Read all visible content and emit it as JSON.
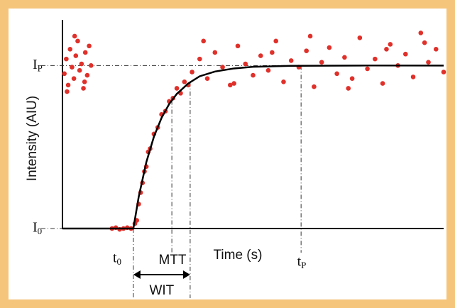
{
  "chart_data": {
    "type": "scatter",
    "y_label": "Intensity (AIU)",
    "x_label": "Time (s)",
    "xlim": [
      0,
      100
    ],
    "ylim": [
      0,
      128
    ],
    "yticks": [
      {
        "value": 0,
        "label": "I0"
      },
      {
        "value": 100,
        "label": "IP"
      }
    ],
    "markers": [
      {
        "label": "t0",
        "x": 18.6
      },
      {
        "label": "MTT",
        "x": 28.7
      },
      {
        "label": "tP",
        "x": 62.6
      }
    ],
    "span": {
      "label": "WIT",
      "x": [
        18.6,
        33.5
      ]
    },
    "series": [
      {
        "color": "#e0302a",
        "x": [
          0.5,
          1,
          1.5,
          2,
          2.5,
          3,
          3.5,
          4,
          4.5,
          5,
          5.5,
          6,
          6.5,
          7,
          7.5,
          1.2,
          3.2,
          5.8,
          13,
          14,
          15,
          16,
          17,
          18,
          19,
          19.5,
          20,
          20.5,
          21,
          21.5,
          22,
          22.5,
          23,
          24,
          25,
          26,
          27,
          28,
          29,
          30,
          31,
          32,
          33,
          34,
          36,
          38,
          40,
          42,
          44,
          46,
          48,
          50,
          52,
          54,
          56,
          58,
          60,
          62,
          64,
          66,
          68,
          70,
          72,
          74,
          76,
          78,
          80,
          82,
          84,
          86,
          88,
          90,
          92,
          94,
          96,
          98,
          100,
          37,
          45,
          55,
          65,
          75,
          85,
          95
        ],
        "values": [
          95,
          104,
          88,
          110,
          99,
          92,
          106,
          115,
          97,
          101,
          86,
          108,
          94,
          112,
          100,
          84,
          118,
          90,
          0,
          0.5,
          -0.5,
          0,
          0.5,
          0,
          3,
          5,
          15,
          22,
          28,
          35,
          38,
          47,
          49,
          58,
          62,
          70,
          72,
          78,
          80,
          86,
          83,
          90,
          88,
          96,
          104,
          92,
          108,
          99,
          88,
          112,
          101,
          94,
          106,
          97,
          115,
          90,
          103,
          99,
          109,
          87,
          102,
          111,
          95,
          105,
          92,
          117,
          98,
          104,
          89,
          113,
          100,
          107,
          93,
          120,
          102,
          110,
          96,
          115,
          89,
          108,
          118,
          86,
          110,
          114
        ]
      }
    ],
    "fit": {
      "color": "#000000",
      "x": [
        0,
        18.6,
        20,
        22,
        24,
        26,
        28,
        30,
        33,
        36,
        40,
        45,
        50,
        60,
        80,
        100
      ],
      "values": [
        0,
        0,
        19.4,
        40.7,
        56.4,
        67.9,
        76.4,
        82.6,
        89,
        93.4,
        96.3,
        98.2,
        99.2,
        99.8,
        100,
        100
      ]
    }
  }
}
